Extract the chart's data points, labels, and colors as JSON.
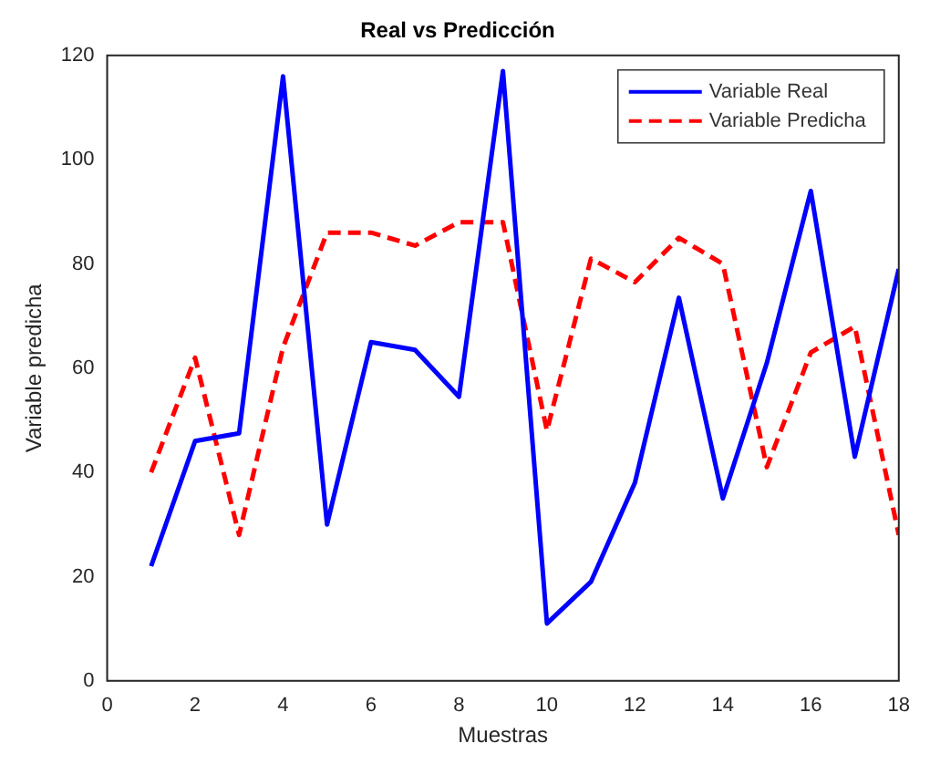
{
  "chart_data": {
    "type": "line",
    "title": "Real vs Predicción",
    "xlabel": "Muestras",
    "ylabel": "Variable predicha",
    "x": [
      1,
      2,
      3,
      4,
      5,
      6,
      7,
      8,
      9,
      10,
      11,
      12,
      13,
      14,
      15,
      16,
      17,
      18
    ],
    "series": [
      {
        "name": "Variable Real",
        "color": "#0000ff",
        "line_style": "solid",
        "values": [
          22,
          46,
          47.5,
          116,
          30,
          65,
          63.5,
          54.5,
          117,
          11,
          19,
          38,
          73.5,
          35,
          61,
          94,
          43,
          79
        ]
      },
      {
        "name": "Variable Predicha",
        "color": "#ff0000",
        "line_style": "dashed",
        "values": [
          40,
          62,
          28,
          64,
          86,
          86,
          83.5,
          88,
          88,
          48,
          81,
          76.5,
          85,
          80,
          41,
          63,
          68,
          28
        ]
      }
    ],
    "xlim": [
      0,
      18
    ],
    "xticks": [
      0,
      2,
      4,
      6,
      8,
      10,
      12,
      14,
      16,
      18
    ],
    "ylim": [
      0,
      120
    ],
    "yticks": [
      0,
      20,
      40,
      60,
      80,
      100,
      120
    ],
    "grid": false,
    "legend": "top right",
    "marker": "none"
  }
}
